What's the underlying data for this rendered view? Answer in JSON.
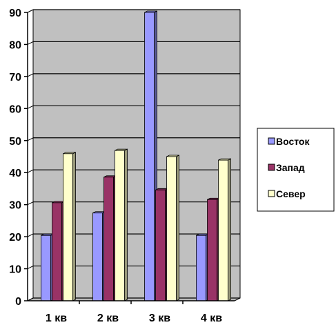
{
  "chart_data": {
    "type": "bar",
    "categories": [
      "1 кв",
      "2 кв",
      "3 кв",
      "4 кв"
    ],
    "series": [
      {
        "name": "Восток",
        "values": [
          20.4,
          27.4,
          90,
          20.4
        ],
        "color": "#9999ff"
      },
      {
        "name": "Запад",
        "values": [
          30.6,
          38.6,
          34.6,
          31.6
        ],
        "color": "#993366"
      },
      {
        "name": "Север",
        "values": [
          45.9,
          46.9,
          45,
          43.9
        ],
        "color": "#ffffcc"
      }
    ],
    "y_ticks": [
      "0",
      "10",
      "20",
      "30",
      "40",
      "50",
      "60",
      "70",
      "80",
      "90"
    ],
    "ylim": [
      0,
      90
    ],
    "title": "",
    "xlabel": "",
    "ylabel": "",
    "grid": true,
    "legend_position": "right",
    "colors": {
      "plot_wall": "#c0c0c0",
      "plot_floor": "#b8b8b8",
      "gridline": "#000000"
    }
  }
}
